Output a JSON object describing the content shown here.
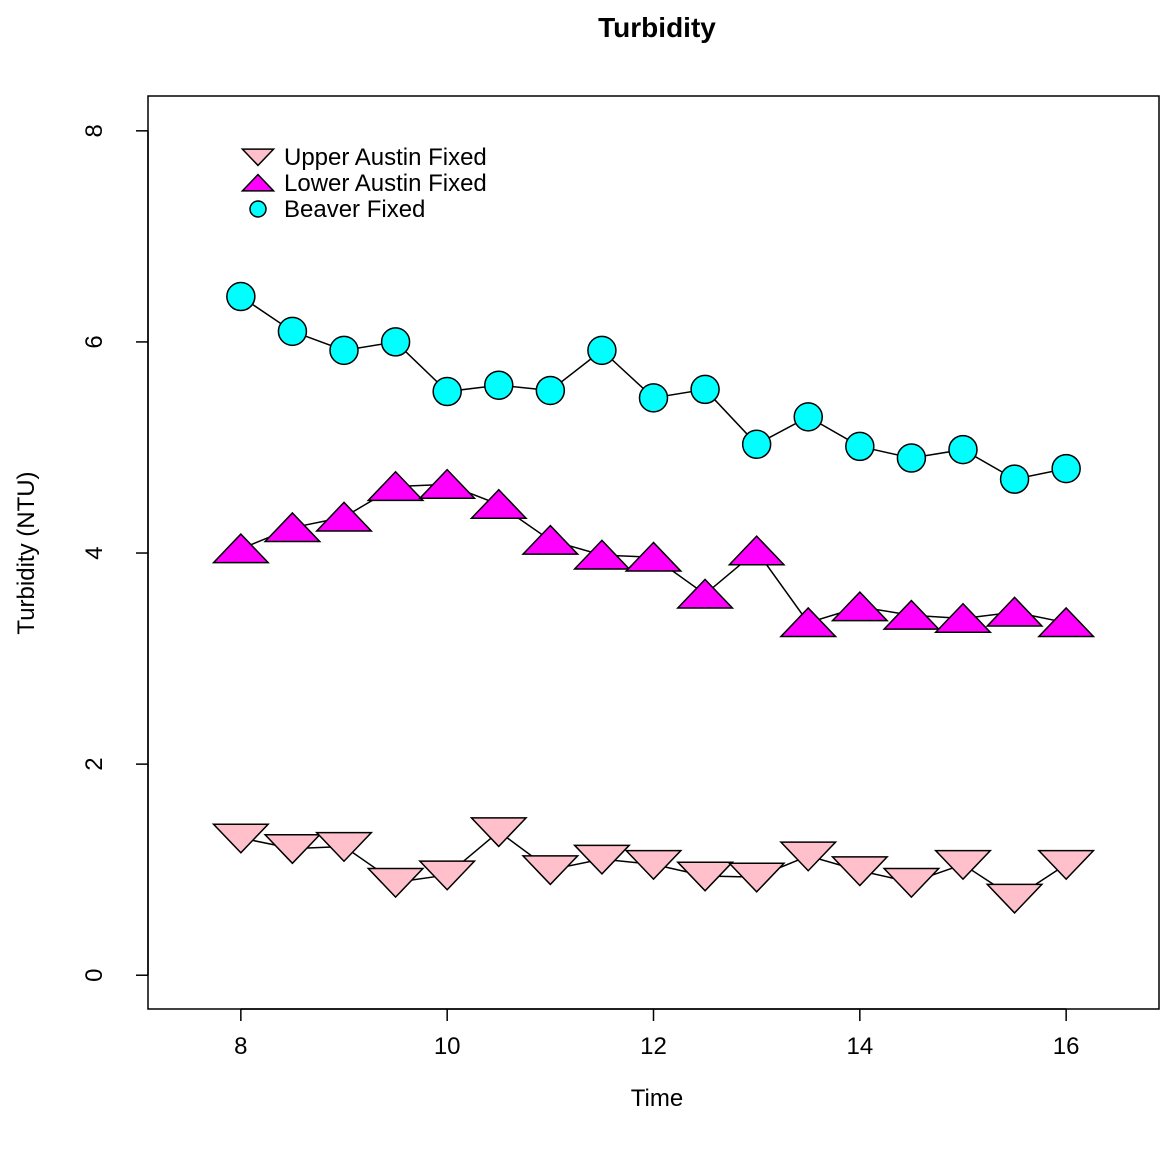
{
  "chart_data": {
    "type": "line",
    "title": "Turbidity",
    "xlabel": "Time",
    "ylabel": "Turbidity (NTU)",
    "xlim": [
      7.1,
      16.9
    ],
    "ylim": [
      -0.32,
      8.33
    ],
    "xticks": [
      8,
      10,
      12,
      14,
      16
    ],
    "yticks": [
      0,
      2,
      4,
      6,
      8
    ],
    "x": [
      8,
      8.5,
      9,
      9.5,
      10,
      10.5,
      11,
      11.5,
      12,
      12.5,
      13,
      13.5,
      14,
      14.5,
      15,
      15.5,
      16
    ],
    "legend_position": "top-left",
    "grid": false,
    "series": [
      {
        "name": "Upper Austin Fixed",
        "marker": "triangle-down",
        "fill": "#ffc0cb",
        "values": [
          1.3,
          1.2,
          1.22,
          0.88,
          0.95,
          1.36,
          1.0,
          1.1,
          1.05,
          0.94,
          0.93,
          1.13,
          0.99,
          0.88,
          1.05,
          0.73,
          1.05
        ]
      },
      {
        "name": "Lower Austin Fixed",
        "marker": "triangle-up",
        "fill": "#ff00ff",
        "values": [
          4.04,
          4.24,
          4.34,
          4.63,
          4.65,
          4.46,
          4.12,
          3.98,
          3.96,
          3.61,
          4.02,
          3.34,
          3.49,
          3.41,
          3.38,
          3.44,
          3.34
        ]
      },
      {
        "name": "Beaver Fixed",
        "marker": "circle",
        "fill": "#00ffff",
        "values": [
          6.43,
          6.1,
          5.92,
          6.0,
          5.53,
          5.59,
          5.54,
          5.92,
          5.47,
          5.55,
          5.03,
          5.29,
          5.01,
          4.9,
          4.98,
          4.7,
          4.8
        ]
      }
    ]
  }
}
